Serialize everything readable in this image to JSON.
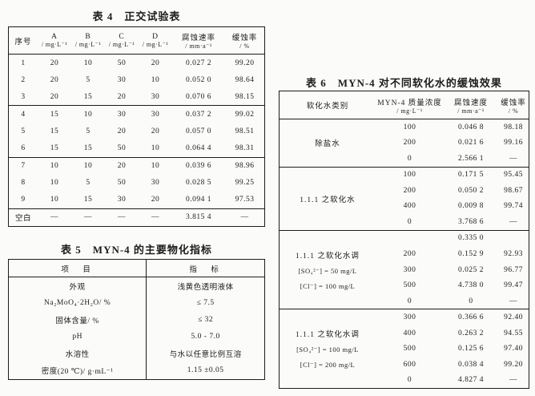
{
  "table4": {
    "title": "表 4　正交试验表",
    "headers": [
      {
        "l1": "序号",
        "l2": ""
      },
      {
        "l1": "A",
        "l2": "/ mg·L⁻¹"
      },
      {
        "l1": "B",
        "l2": "/ mg·L⁻¹"
      },
      {
        "l1": "C",
        "l2": "/ mg·L⁻¹"
      },
      {
        "l1": "D",
        "l2": "/ mg·L⁻¹"
      },
      {
        "l1": "腐蚀速率",
        "l2": "/ mm·a⁻¹"
      },
      {
        "l1": "缓蚀率",
        "l2": "/ %"
      }
    ],
    "rows": [
      [
        "1",
        "20",
        "10",
        "50",
        "20",
        "0.027 2",
        "99.20"
      ],
      [
        "2",
        "20",
        "5",
        "30",
        "10",
        "0.052 0",
        "98.64"
      ],
      [
        "3",
        "20",
        "15",
        "20",
        "30",
        "0.070 6",
        "98.15"
      ],
      [
        "4",
        "15",
        "10",
        "30",
        "30",
        "0.037 2",
        "99.02"
      ],
      [
        "5",
        "15",
        "5",
        "20",
        "20",
        "0.057 0",
        "98.51"
      ],
      [
        "6",
        "15",
        "15",
        "50",
        "10",
        "0.064 4",
        "98.31"
      ],
      [
        "7",
        "10",
        "10",
        "20",
        "10",
        "0.039 6",
        "98.96"
      ],
      [
        "8",
        "10",
        "5",
        "50",
        "30",
        "0.028 5",
        "99.25"
      ],
      [
        "9",
        "10",
        "15",
        "30",
        "20",
        "0.094 1",
        "97.53"
      ],
      [
        "空白",
        "—",
        "—",
        "—",
        "—",
        "3.815 4",
        "—"
      ]
    ]
  },
  "table5": {
    "title": "表 5　MYN-4 的主要物化指标",
    "headers": [
      "项　目",
      "指　标"
    ],
    "rows": [
      [
        "外观",
        "浅黄色透明液体"
      ],
      [
        "Na₂MoO₄·2H₂O/ %",
        "≤ 7.5"
      ],
      [
        "固体含量/ %",
        "≤ 32"
      ],
      [
        "pH",
        "5.0 - 7.0"
      ],
      [
        "水溶性",
        "与水以任意比例互溶"
      ],
      [
        "密度(20 ℃)/ g·mL⁻¹",
        "1.15 ±0.05"
      ]
    ]
  },
  "table6": {
    "title": "表 6　MYN-4 对不同软化水的缓蚀效果",
    "headers": [
      {
        "l1": "软化水类别",
        "l2": ""
      },
      {
        "l1": "MYN-4 质量浓度",
        "l2": "/ mg·L⁻¹"
      },
      {
        "l1": "腐蚀速度",
        "l2": "/ mm·a⁻¹"
      },
      {
        "l1": "缓蚀率",
        "l2": "/ %"
      }
    ],
    "groups": [
      {
        "label1": "除盐水",
        "label2": "",
        "label3": "",
        "rows": [
          [
            "100",
            "0.046 8",
            "98.18"
          ],
          [
            "200",
            "0.021 6",
            "99.16"
          ],
          [
            "0",
            "2.566 1",
            "—"
          ]
        ]
      },
      {
        "label1": "1.1.1 之软化水",
        "label2": "",
        "label3": "",
        "rows": [
          [
            "100",
            "0.171 5",
            "95.45"
          ],
          [
            "200",
            "0.050 2",
            "98.67"
          ],
          [
            "400",
            "0.009 8",
            "99.74"
          ],
          [
            "0",
            "3.768 6",
            "—"
          ]
        ]
      },
      {
        "label1": "1.1.1 之软化水调",
        "label2": "[SO₄²⁻] = 50 mg/L",
        "label3": "[Cl⁻] = 100 mg/L",
        "rows": [
          [
            "",
            "0.335 0",
            ""
          ],
          [
            "200",
            "0.152 9",
            "92.93"
          ],
          [
            "300",
            "0.025 2",
            "96.77"
          ],
          [
            "500",
            "4.738 0",
            "99.47"
          ],
          [
            "0",
            "0",
            "—"
          ]
        ]
      },
      {
        "label1": "1.1.1 之软化水调",
        "label2": "[SO₄²⁻] = 100 mg/L",
        "label3": "[Cl⁻] = 200 mg/L",
        "rows": [
          [
            "300",
            "0.366 6",
            "92.40"
          ],
          [
            "400",
            "0.263 2",
            "94.55"
          ],
          [
            "500",
            "0.125 6",
            "97.40"
          ],
          [
            "600",
            "0.038 4",
            "99.20"
          ],
          [
            "0",
            "4.827 4",
            "—"
          ]
        ]
      }
    ]
  }
}
